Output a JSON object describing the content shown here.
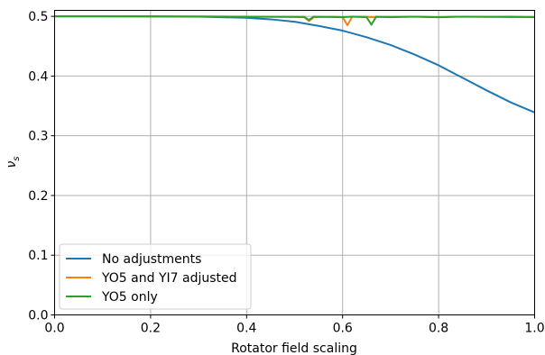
{
  "chart_data": {
    "type": "line",
    "xlabel": "Rotator field scaling",
    "ylabel_symbol": "ν",
    "ylabel_subscript": "s",
    "xlim": [
      0.0,
      1.0
    ],
    "ylim": [
      0.0,
      0.51
    ],
    "x_ticks": [
      "0.0",
      "0.2",
      "0.4",
      "0.6",
      "0.8",
      "1.0"
    ],
    "y_ticks": [
      "0.0",
      "0.1",
      "0.2",
      "0.3",
      "0.4",
      "0.5"
    ],
    "grid": true,
    "legend_position": "lower-left",
    "series": [
      {
        "name": "No adjustments",
        "color": "#1f77b4",
        "points": [
          [
            0.0,
            0.5
          ],
          [
            0.1,
            0.5
          ],
          [
            0.2,
            0.5
          ],
          [
            0.3,
            0.4995
          ],
          [
            0.4,
            0.4975
          ],
          [
            0.45,
            0.495
          ],
          [
            0.5,
            0.491
          ],
          [
            0.55,
            0.484
          ],
          [
            0.6,
            0.476
          ],
          [
            0.65,
            0.465
          ],
          [
            0.7,
            0.452
          ],
          [
            0.75,
            0.436
          ],
          [
            0.8,
            0.418
          ],
          [
            0.85,
            0.397
          ],
          [
            0.9,
            0.376
          ],
          [
            0.95,
            0.356
          ],
          [
            1.0,
            0.339
          ]
        ]
      },
      {
        "name": "YO5 and YI7 adjusted",
        "color": "#ff7f0e",
        "points": [
          [
            0.0,
            0.5
          ],
          [
            0.1,
            0.5
          ],
          [
            0.2,
            0.4995
          ],
          [
            0.3,
            0.5
          ],
          [
            0.4,
            0.4995
          ],
          [
            0.5,
            0.499
          ],
          [
            0.52,
            0.4985
          ],
          [
            0.53,
            0.492
          ],
          [
            0.54,
            0.4985
          ],
          [
            0.58,
            0.4995
          ],
          [
            0.6,
            0.4985
          ],
          [
            0.61,
            0.485
          ],
          [
            0.62,
            0.4995
          ],
          [
            0.65,
            0.4995
          ],
          [
            0.66,
            0.4985
          ],
          [
            0.7,
            0.4995
          ],
          [
            0.75,
            0.4995
          ],
          [
            0.8,
            0.4985
          ],
          [
            0.85,
            0.4995
          ],
          [
            0.9,
            0.4995
          ],
          [
            0.95,
            0.4985
          ],
          [
            1.0,
            0.499
          ]
        ]
      },
      {
        "name": "YO5 only",
        "color": "#2ca02c",
        "points": [
          [
            0.0,
            0.5
          ],
          [
            0.1,
            0.5
          ],
          [
            0.2,
            0.5
          ],
          [
            0.3,
            0.4995
          ],
          [
            0.4,
            0.4995
          ],
          [
            0.5,
            0.499
          ],
          [
            0.52,
            0.499
          ],
          [
            0.53,
            0.494
          ],
          [
            0.54,
            0.4995
          ],
          [
            0.6,
            0.4985
          ],
          [
            0.62,
            0.4995
          ],
          [
            0.65,
            0.4985
          ],
          [
            0.66,
            0.486
          ],
          [
            0.67,
            0.4995
          ],
          [
            0.7,
            0.4985
          ],
          [
            0.75,
            0.4995
          ],
          [
            0.8,
            0.4985
          ],
          [
            0.85,
            0.4995
          ],
          [
            0.9,
            0.499
          ],
          [
            0.95,
            0.4995
          ],
          [
            1.0,
            0.4985
          ]
        ]
      }
    ]
  }
}
